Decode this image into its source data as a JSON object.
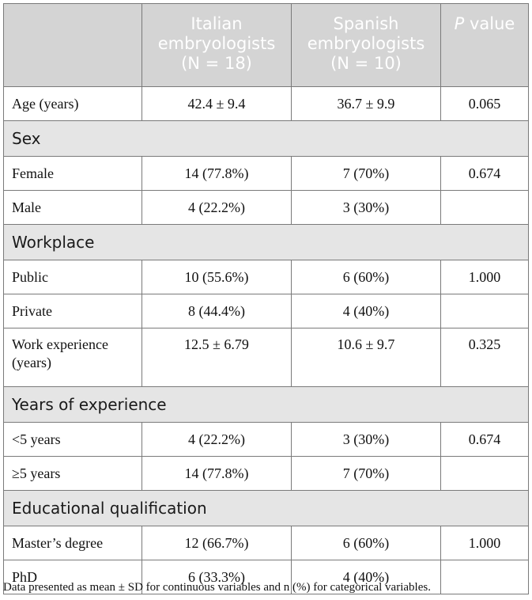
{
  "header": {
    "col1": "",
    "col2_line1": "Italian",
    "col2_line2": "embryologists",
    "col2_n": "(N = 18)",
    "col3_line1": "Spanish",
    "col3_line2": "embryologists",
    "col3_n": "(N = 10)",
    "col4_p": "P",
    "col4_rest": " value"
  },
  "rows": {
    "age": {
      "label": "Age (years)",
      "it": "42.4 ± 9.4",
      "es": "36.7 ± 9.9",
      "p": "0.065"
    },
    "sex_section": "Sex",
    "female": {
      "label": "Female",
      "it": "14 (77.8%)",
      "es": "7 (70%)",
      "p": "0.674"
    },
    "male": {
      "label": "Male",
      "it": "4 (22.2%)",
      "es": "3 (30%)",
      "p": ""
    },
    "workplace_section": "Workplace",
    "public": {
      "label": "Public",
      "it": "10 (55.6%)",
      "es": "6 (60%)",
      "p": "1.000"
    },
    "private": {
      "label": "Private",
      "it": "8 (44.4%)",
      "es": "4 (40%)",
      "p": ""
    },
    "work_exp": {
      "label_line1": "Work experience",
      "label_line2": "(years)",
      "it": "12.5 ± 6.79",
      "es": "10.6 ± 9.7",
      "p": "0.325"
    },
    "years_section": "Years of experience",
    "lt5": {
      "label": "<5 years",
      "it": "4 (22.2%)",
      "es": "3 (30%)",
      "p": "0.674"
    },
    "ge5": {
      "label": "≥5 years",
      "it": "14 (77.8%)",
      "es": "7 (70%)",
      "p": ""
    },
    "edu_section": "Educational qualification",
    "masters": {
      "label": "Master’s degree",
      "it": "12 (66.7%)",
      "es": "6 (60%)",
      "p": "1.000"
    },
    "phd": {
      "label": "PhD",
      "it": "6 (33.3%)",
      "es": "4 (40%)",
      "p": ""
    }
  },
  "footnote": "Data presented as mean ± SD for continuous variables and n (%) for categorical variables."
}
